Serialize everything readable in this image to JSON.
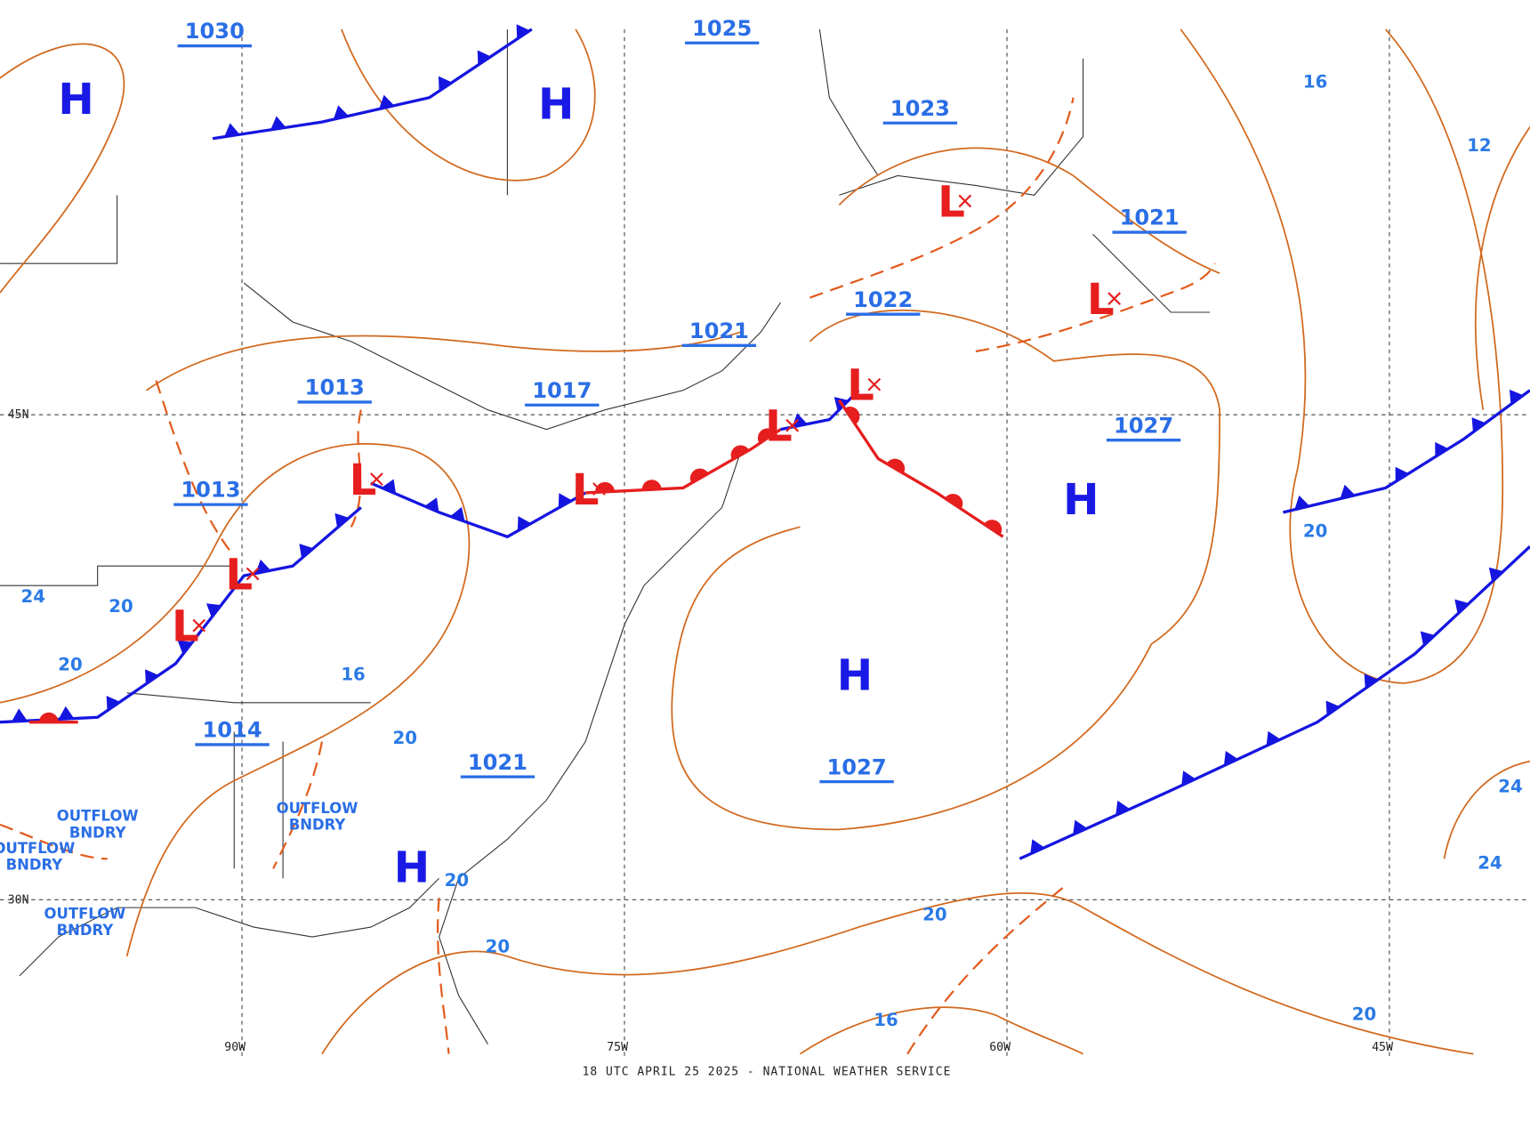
{
  "footer": "18 UTC APRIL 25 2025 - NATIONAL WEATHER SERVICE",
  "highs": [
    "H",
    "H",
    "H",
    "H",
    "H"
  ],
  "lows": [
    "L",
    "L",
    "L",
    "L",
    "L",
    "L",
    "L",
    "L"
  ],
  "isobar_labels": [
    "1030",
    "1025",
    "1023",
    "1021",
    "1022",
    "1021",
    "1013",
    "1017",
    "1027",
    "1013",
    "1014",
    "1021",
    "1027"
  ],
  "thickness_labels": [
    "16",
    "12",
    "20",
    "24",
    "20",
    "20",
    "16",
    "20",
    "20",
    "20",
    "20",
    "16",
    "20",
    "24",
    "24"
  ],
  "boundary_labels": [
    [
      "OUTFLOW",
      "BNDRY"
    ],
    [
      "OUTFLOW",
      "BNDRY"
    ],
    [
      "OUTFLOW",
      "BNDRY"
    ],
    [
      "OUTFLOW",
      "BNDRY"
    ]
  ],
  "grid_labels": [
    "45N",
    "30N",
    "90W",
    "75W",
    "60W",
    "45W"
  ]
}
